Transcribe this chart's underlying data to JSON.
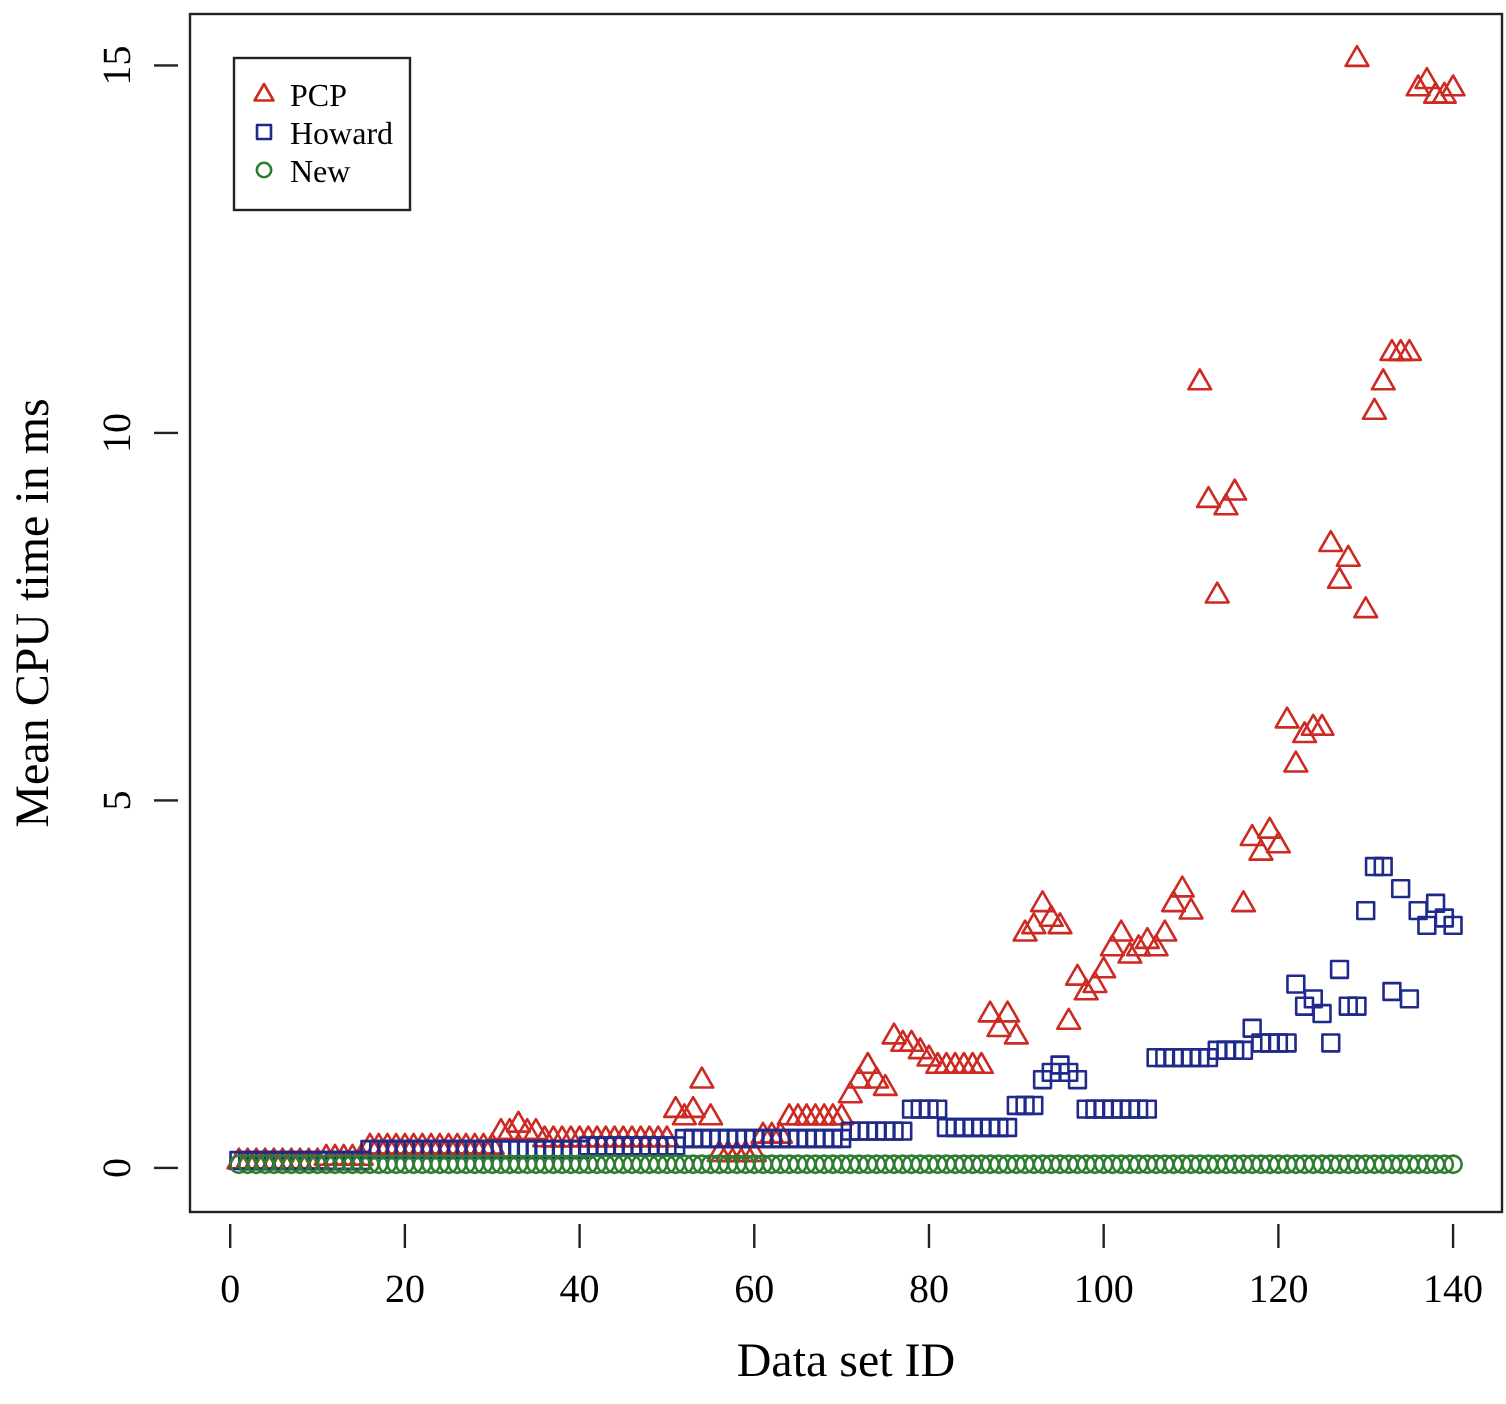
{
  "chart_data": {
    "type": "scatter",
    "xlabel": "Data set ID",
    "ylabel": "Mean CPU time in ms",
    "x": [
      1,
      2,
      3,
      4,
      5,
      6,
      7,
      8,
      9,
      10,
      11,
      12,
      13,
      14,
      15,
      16,
      17,
      18,
      19,
      20,
      21,
      22,
      23,
      24,
      25,
      26,
      27,
      28,
      29,
      30,
      31,
      32,
      33,
      34,
      35,
      36,
      37,
      38,
      39,
      40,
      41,
      42,
      43,
      44,
      45,
      46,
      47,
      48,
      49,
      50,
      51,
      52,
      53,
      54,
      55,
      56,
      57,
      58,
      59,
      60,
      61,
      62,
      63,
      64,
      65,
      66,
      67,
      68,
      69,
      70,
      71,
      72,
      73,
      74,
      75,
      76,
      77,
      78,
      79,
      80,
      81,
      82,
      83,
      84,
      85,
      86,
      87,
      88,
      89,
      90,
      91,
      92,
      93,
      94,
      95,
      96,
      97,
      98,
      99,
      100,
      101,
      102,
      103,
      104,
      105,
      106,
      107,
      108,
      109,
      110,
      111,
      112,
      113,
      114,
      115,
      116,
      117,
      118,
      119,
      120,
      121,
      122,
      123,
      124,
      125,
      126,
      127,
      128,
      129,
      130,
      131,
      132,
      133,
      134,
      135,
      136,
      137,
      138,
      139,
      140
    ],
    "series": [
      {
        "name": "PCP",
        "color": "#cc2a22",
        "marker": "triangle",
        "values": [
          0.1,
          0.1,
          0.1,
          0.1,
          0.1,
          0.1,
          0.1,
          0.1,
          0.1,
          0.1,
          0.15,
          0.15,
          0.15,
          0.15,
          0.15,
          0.3,
          0.3,
          0.3,
          0.3,
          0.3,
          0.3,
          0.3,
          0.3,
          0.3,
          0.3,
          0.3,
          0.3,
          0.3,
          0.3,
          0.3,
          0.5,
          0.5,
          0.6,
          0.5,
          0.5,
          0.4,
          0.4,
          0.4,
          0.4,
          0.4,
          0.4,
          0.4,
          0.4,
          0.4,
          0.4,
          0.4,
          0.4,
          0.4,
          0.4,
          0.4,
          0.8,
          0.7,
          0.8,
          1.2,
          0.7,
          0.2,
          0.2,
          0.2,
          0.2,
          0.2,
          0.45,
          0.45,
          0.45,
          0.7,
          0.7,
          0.7,
          0.7,
          0.7,
          0.7,
          0.7,
          1.0,
          1.2,
          1.4,
          1.2,
          1.1,
          1.8,
          1.7,
          1.7,
          1.6,
          1.5,
          1.4,
          1.4,
          1.4,
          1.4,
          1.4,
          1.4,
          2.1,
          1.9,
          2.1,
          1.8,
          3.2,
          3.3,
          3.6,
          3.4,
          3.3,
          2.0,
          2.6,
          2.4,
          2.5,
          2.7,
          3.0,
          3.2,
          2.9,
          3.0,
          3.1,
          3.0,
          3.2,
          3.6,
          3.8,
          3.5,
          10.7,
          9.1,
          7.8,
          9.0,
          9.2,
          3.6,
          4.5,
          4.3,
          4.6,
          4.4,
          6.1,
          5.5,
          5.9,
          6.0,
          6.0,
          8.5,
          8.0,
          8.3,
          15.1,
          7.6,
          10.3,
          10.7,
          11.1,
          11.1,
          11.1,
          14.7,
          14.8,
          14.6,
          14.6,
          14.7
        ]
      },
      {
        "name": "Howard",
        "color": "#1f2a8a",
        "marker": "square",
        "values": [
          0.1,
          0.1,
          0.1,
          0.1,
          0.1,
          0.1,
          0.1,
          0.1,
          0.1,
          0.1,
          0.1,
          0.1,
          0.1,
          0.1,
          0.1,
          0.25,
          0.25,
          0.25,
          0.25,
          0.25,
          0.25,
          0.25,
          0.25,
          0.25,
          0.25,
          0.25,
          0.25,
          0.25,
          0.25,
          0.25,
          0.25,
          0.25,
          0.25,
          0.25,
          0.25,
          0.25,
          0.25,
          0.25,
          0.25,
          0.25,
          0.3,
          0.3,
          0.3,
          0.3,
          0.3,
          0.3,
          0.3,
          0.3,
          0.3,
          0.3,
          0.3,
          0.4,
          0.4,
          0.4,
          0.4,
          0.4,
          0.4,
          0.4,
          0.4,
          0.4,
          0.4,
          0.4,
          0.4,
          0.4,
          0.4,
          0.4,
          0.4,
          0.4,
          0.4,
          0.4,
          0.5,
          0.5,
          0.5,
          0.5,
          0.5,
          0.5,
          0.5,
          0.8,
          0.8,
          0.8,
          0.8,
          0.55,
          0.55,
          0.55,
          0.55,
          0.55,
          0.55,
          0.55,
          0.55,
          0.85,
          0.85,
          0.85,
          1.2,
          1.3,
          1.4,
          1.3,
          1.2,
          0.8,
          0.8,
          0.8,
          0.8,
          0.8,
          0.8,
          0.8,
          0.8,
          1.5,
          1.5,
          1.5,
          1.5,
          1.5,
          1.5,
          1.5,
          1.6,
          1.6,
          1.6,
          1.6,
          1.9,
          1.7,
          1.7,
          1.7,
          1.7,
          2.5,
          2.2,
          2.3,
          2.1,
          1.7,
          2.7,
          2.2,
          2.2,
          3.5,
          4.1,
          4.1,
          2.4,
          3.8,
          2.3,
          3.5,
          3.3,
          3.6,
          3.4,
          3.3
        ]
      },
      {
        "name": "New",
        "color": "#2e7d32",
        "marker": "circle",
        "values": [
          0.05,
          0.05,
          0.05,
          0.05,
          0.05,
          0.05,
          0.05,
          0.05,
          0.05,
          0.05,
          0.05,
          0.05,
          0.05,
          0.05,
          0.05,
          0.05,
          0.05,
          0.05,
          0.05,
          0.05,
          0.05,
          0.05,
          0.05,
          0.05,
          0.05,
          0.05,
          0.05,
          0.05,
          0.05,
          0.05,
          0.05,
          0.05,
          0.05,
          0.05,
          0.05,
          0.05,
          0.05,
          0.05,
          0.05,
          0.05,
          0.05,
          0.05,
          0.05,
          0.05,
          0.05,
          0.05,
          0.05,
          0.05,
          0.05,
          0.05,
          0.05,
          0.05,
          0.05,
          0.05,
          0.05,
          0.05,
          0.05,
          0.05,
          0.05,
          0.05,
          0.05,
          0.05,
          0.05,
          0.05,
          0.05,
          0.05,
          0.05,
          0.05,
          0.05,
          0.05,
          0.05,
          0.05,
          0.05,
          0.05,
          0.05,
          0.05,
          0.05,
          0.05,
          0.05,
          0.05,
          0.05,
          0.05,
          0.05,
          0.05,
          0.05,
          0.05,
          0.05,
          0.05,
          0.05,
          0.05,
          0.05,
          0.05,
          0.05,
          0.05,
          0.05,
          0.05,
          0.05,
          0.05,
          0.05,
          0.05,
          0.05,
          0.05,
          0.05,
          0.05,
          0.05,
          0.05,
          0.05,
          0.05,
          0.05,
          0.05,
          0.05,
          0.05,
          0.05,
          0.05,
          0.05,
          0.05,
          0.05,
          0.05,
          0.05,
          0.05,
          0.05,
          0.05,
          0.05,
          0.05,
          0.05,
          0.05,
          0.05,
          0.05,
          0.05,
          0.05,
          0.05,
          0.05,
          0.05,
          0.05,
          0.05,
          0.05,
          0.05,
          0.05,
          0.05,
          0.05
        ]
      }
    ],
    "xlim": [
      -4.6,
      145.6
    ],
    "ylim": [
      -0.6,
      15.7
    ],
    "xticks": [
      0,
      20,
      40,
      60,
      80,
      100,
      120,
      140
    ],
    "yticks": [
      0,
      5,
      10,
      15
    ],
    "legend": "top left",
    "grid": false
  }
}
